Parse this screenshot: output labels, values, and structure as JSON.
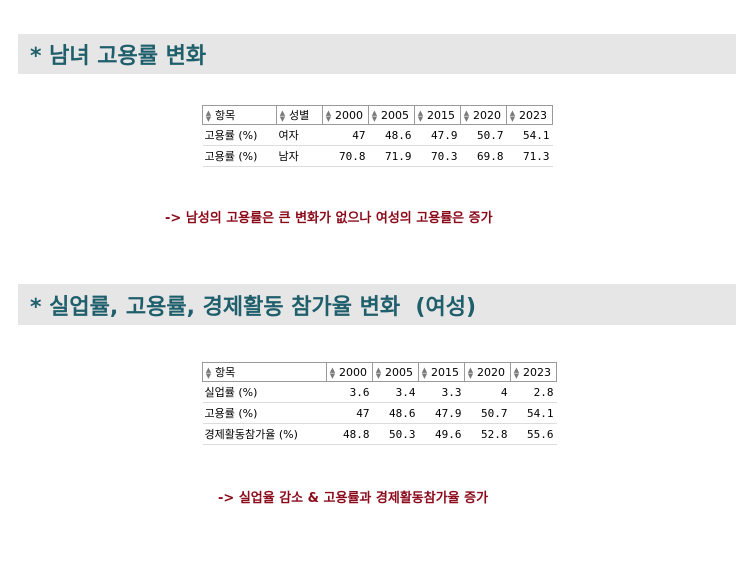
{
  "section1": {
    "title": "* 남녀 고용률 변화",
    "table": {
      "headers": [
        "항목",
        "성별",
        "2000",
        "2005",
        "2015",
        "2020",
        "2023"
      ],
      "rows": [
        [
          "고용률 (%)",
          "여자",
          "47",
          "48.6",
          "47.9",
          "50.7",
          "54.1"
        ],
        [
          "고용률 (%)",
          "남자",
          "70.8",
          "71.9",
          "70.3",
          "69.8",
          "71.3"
        ]
      ]
    },
    "note": "-> 남성의 고용률은 큰 변화가 없으나 여성의 고용률은 증가"
  },
  "section2": {
    "title": "* 실업률, 고용률, 경제활동 참가율 변화  (여성)",
    "table": {
      "headers": [
        "항목",
        "2000",
        "2005",
        "2015",
        "2020",
        "2023"
      ],
      "rows": [
        [
          "실업률 (%)",
          "3.6",
          "3.4",
          "3.3",
          "4",
          "2.8"
        ],
        [
          "고용률 (%)",
          "47",
          "48.6",
          "47.9",
          "50.7",
          "54.1"
        ],
        [
          "경제활동참가율 (%)",
          "48.8",
          "50.3",
          "49.6",
          "52.8",
          "55.6"
        ]
      ]
    },
    "note": "-> 실업율 감소 & 고용률과 경제활동참가율 증가"
  },
  "icons": {
    "sort": "sort-arrows-icon"
  },
  "colors": {
    "title": "#1f5f6b",
    "bar_bg": "#e6e6e6",
    "note": "#8b0a1a"
  }
}
